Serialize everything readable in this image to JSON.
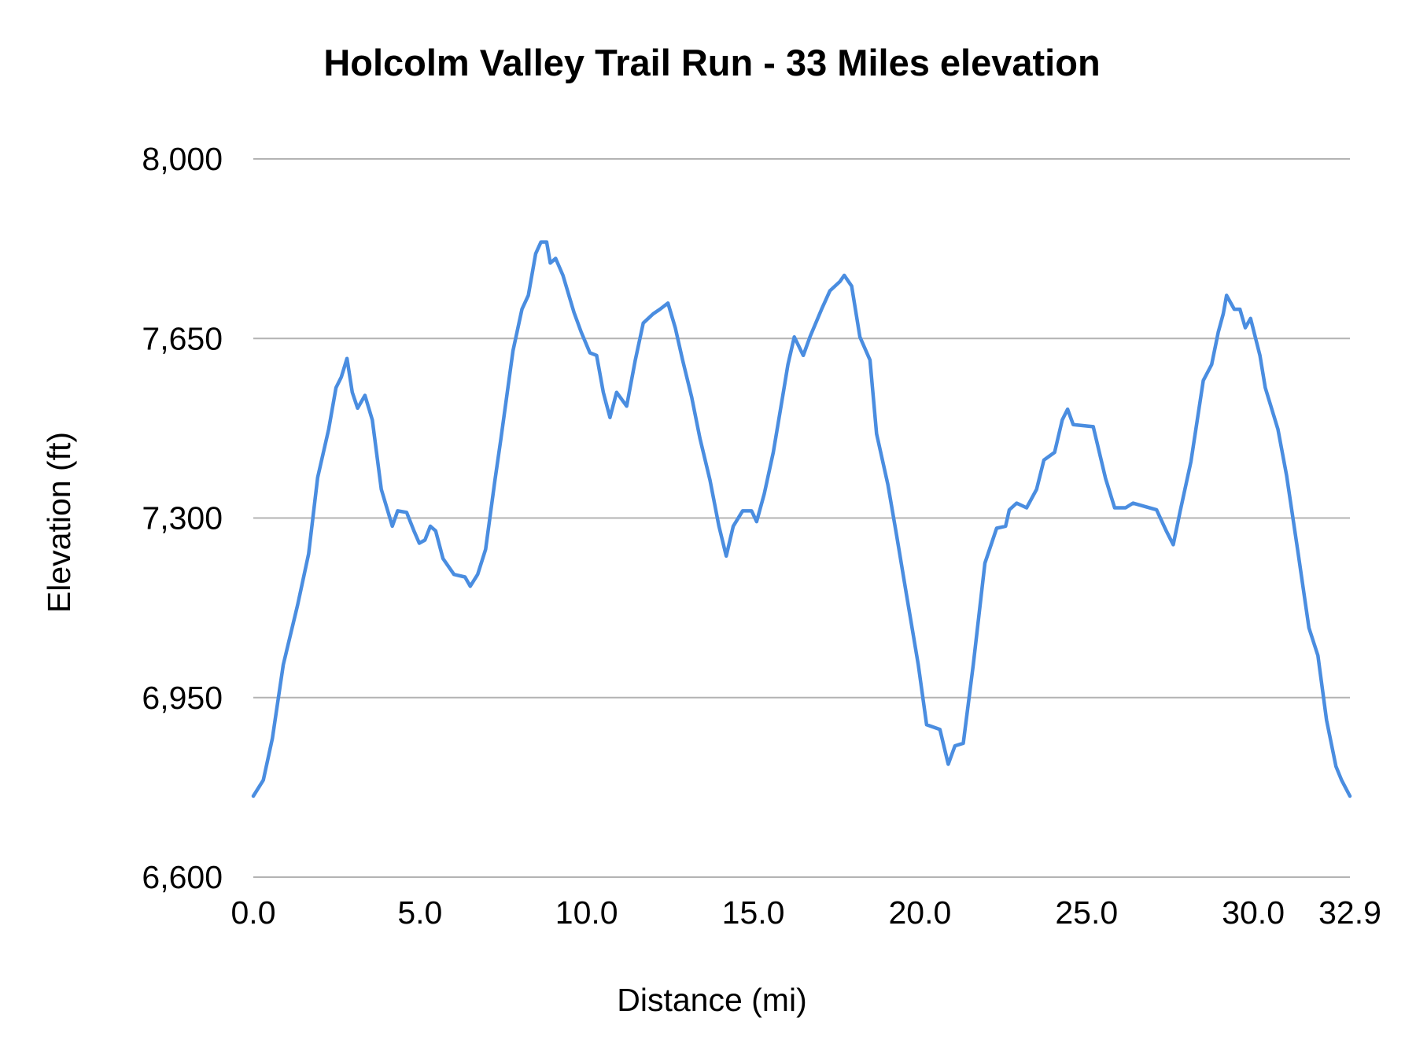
{
  "chart_data": {
    "type": "line",
    "title": "Holcolm Valley Trail Run - 33 Miles elevation",
    "xlabel": "Distance (mi)",
    "ylabel": "Elevation (ft)",
    "xlim": [
      0,
      32.9
    ],
    "ylim": [
      6600,
      8000
    ],
    "x_ticks": [
      "0.0",
      "5.0",
      "10.0",
      "15.0",
      "20.0",
      "25.0",
      "30.0",
      "32.9"
    ],
    "x_tick_values": [
      0,
      5,
      10,
      15,
      20,
      25,
      30,
      32.9
    ],
    "y_ticks": [
      "6,600",
      "6,950",
      "7,300",
      "7,650",
      "8,000"
    ],
    "y_tick_values": [
      6600,
      6950,
      7300,
      7650,
      8000
    ],
    "grid": "horizontal",
    "legend": "none",
    "line_color": "#4a8de0",
    "grid_color": "#b3b3b3",
    "x": [
      0,
      0.3,
      0.57,
      0.9,
      1.33,
      1.66,
      1.93,
      2.26,
      2.48,
      2.64,
      2.81,
      2.97,
      3.13,
      3.35,
      3.57,
      3.84,
      4.17,
      4.33,
      4.6,
      4.82,
      4.98,
      5.15,
      5.31,
      5.47,
      5.69,
      6.02,
      6.35,
      6.51,
      6.73,
      6.97,
      7.25,
      7.43,
      7.79,
      8.06,
      8.25,
      8.47,
      8.63,
      8.8,
      8.91,
      9.07,
      9.29,
      9.62,
      9.84,
      10.1,
      10.3,
      10.5,
      10.7,
      10.9,
      11.2,
      11.46,
      11.7,
      12.0,
      12.2,
      12.44,
      12.66,
      12.88,
      13.15,
      13.4,
      13.7,
      13.97,
      14.19,
      14.4,
      14.68,
      14.95,
      15.1,
      15.33,
      15.6,
      15.88,
      16.04,
      16.23,
      16.5,
      16.7,
      17.05,
      17.3,
      17.6,
      17.73,
      17.95,
      18.2,
      18.5,
      18.7,
      19.04,
      19.3,
      19.6,
      19.95,
      20.2,
      20.6,
      20.85,
      21.05,
      21.3,
      21.6,
      21.95,
      22.3,
      22.57,
      22.68,
      22.9,
      23.2,
      23.5,
      23.72,
      24.04,
      24.27,
      24.43,
      24.6,
      25.2,
      25.57,
      25.84,
      26.17,
      26.39,
      27.1,
      27.39,
      27.6,
      27.8,
      28.13,
      28.5,
      28.75,
      28.95,
      29.1,
      29.2,
      29.43,
      29.6,
      29.76,
      29.92,
      30.2,
      30.36,
      30.74,
      31.0,
      31.35,
      31.67,
      31.94,
      32.2,
      32.48,
      32.65,
      32.9
    ],
    "y": [
      6758,
      6789,
      6870,
      7014,
      7131,
      7230,
      7379,
      7473,
      7554,
      7575,
      7611,
      7545,
      7514,
      7539,
      7491,
      7356,
      7284,
      7314,
      7311,
      7275,
      7251,
      7257,
      7284,
      7275,
      7221,
      7190,
      7185,
      7167,
      7190,
      7239,
      7374,
      7455,
      7626,
      7707,
      7734,
      7815,
      7838,
      7838,
      7797,
      7806,
      7773,
      7701,
      7662,
      7622,
      7617,
      7545,
      7496,
      7545,
      7518,
      7608,
      7680,
      7698,
      7707,
      7719,
      7671,
      7608,
      7536,
      7455,
      7374,
      7284,
      7226,
      7284,
      7314,
      7314,
      7293,
      7347,
      7428,
      7536,
      7599,
      7653,
      7617,
      7653,
      7707,
      7743,
      7761,
      7773,
      7752,
      7653,
      7608,
      7464,
      7365,
      7266,
      7149,
      7014,
      6897,
      6888,
      6820,
      6856,
      6861,
      7014,
      7212,
      7280,
      7284,
      7316,
      7329,
      7320,
      7356,
      7413,
      7428,
      7491,
      7512,
      7482,
      7478,
      7377,
      7320,
      7320,
      7329,
      7316,
      7275,
      7248,
      7311,
      7410,
      7568,
      7599,
      7662,
      7698,
      7734,
      7707,
      7707,
      7671,
      7689,
      7617,
      7554,
      7473,
      7383,
      7230,
      7086,
      7032,
      6906,
      6816,
      6789,
      6758
    ]
  }
}
